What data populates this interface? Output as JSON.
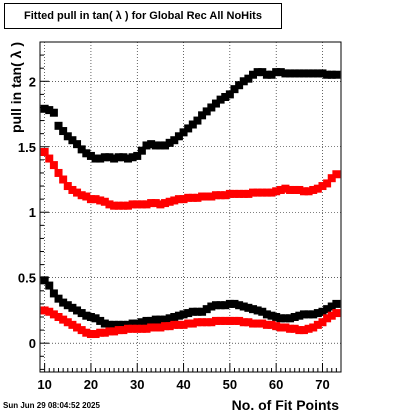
{
  "timestamp": "Sun Jun 29 08:04:52 2025",
  "chart_data": {
    "type": "scatter",
    "title": "Fitted pull in tan( λ ) for Global Rec All NoHits",
    "xlabel": "No. of Fit Points",
    "ylabel": "pull in tan( λ )",
    "xlim": [
      9,
      74
    ],
    "ylim": [
      -0.22,
      2.3
    ],
    "x_ticks": [
      10,
      20,
      30,
      40,
      50,
      60,
      70
    ],
    "y_ticks": [
      0,
      0.5,
      1,
      1.5,
      2
    ],
    "y_tick_labels": [
      "0",
      "0.5",
      "1",
      "1.5",
      "2"
    ],
    "grid": true,
    "marker": "square",
    "series": [
      {
        "color": "#000000",
        "x": [
          10,
          11,
          12,
          13,
          14,
          15,
          16,
          17,
          18,
          19,
          20,
          21,
          22,
          23,
          24,
          25,
          26,
          27,
          28,
          29,
          30,
          31,
          32,
          33,
          34,
          35,
          36,
          37,
          38,
          39,
          40,
          41,
          42,
          43,
          44,
          45,
          46,
          47,
          48,
          49,
          50,
          51,
          52,
          53,
          54,
          55,
          56,
          57,
          58,
          59,
          60,
          61,
          62,
          63,
          64,
          65,
          66,
          67,
          68,
          69,
          70,
          71,
          72,
          73
        ],
        "values": [
          1.79,
          1.78,
          1.76,
          1.66,
          1.62,
          1.58,
          1.55,
          1.52,
          1.48,
          1.45,
          1.43,
          1.41,
          1.41,
          1.42,
          1.42,
          1.41,
          1.42,
          1.42,
          1.41,
          1.42,
          1.43,
          1.47,
          1.51,
          1.52,
          1.51,
          1.51,
          1.51,
          1.53,
          1.55,
          1.58,
          1.61,
          1.64,
          1.67,
          1.7,
          1.74,
          1.77,
          1.8,
          1.83,
          1.86,
          1.88,
          1.9,
          1.94,
          1.97,
          2.0,
          2.02,
          2.05,
          2.07,
          2.07,
          2.05,
          2.05,
          2.07,
          2.07,
          2.06,
          2.06,
          2.06,
          2.06,
          2.06,
          2.06,
          2.06,
          2.06,
          2.06,
          2.05,
          2.05,
          2.05
        ]
      },
      {
        "color": "#ff0000",
        "x": [
          10,
          11,
          12,
          13,
          14,
          15,
          16,
          17,
          18,
          19,
          20,
          21,
          22,
          23,
          24,
          25,
          26,
          27,
          28,
          29,
          30,
          31,
          32,
          33,
          34,
          35,
          36,
          37,
          38,
          39,
          40,
          41,
          42,
          43,
          44,
          45,
          46,
          47,
          48,
          49,
          50,
          51,
          52,
          53,
          54,
          55,
          56,
          57,
          58,
          59,
          60,
          61,
          62,
          63,
          64,
          65,
          66,
          67,
          68,
          69,
          70,
          71,
          72,
          73
        ],
        "values": [
          1.46,
          1.41,
          1.36,
          1.3,
          1.25,
          1.2,
          1.17,
          1.15,
          1.13,
          1.12,
          1.1,
          1.1,
          1.09,
          1.08,
          1.06,
          1.05,
          1.05,
          1.05,
          1.05,
          1.06,
          1.06,
          1.06,
          1.06,
          1.07,
          1.07,
          1.06,
          1.07,
          1.08,
          1.09,
          1.1,
          1.1,
          1.11,
          1.11,
          1.11,
          1.12,
          1.12,
          1.12,
          1.13,
          1.13,
          1.13,
          1.14,
          1.14,
          1.14,
          1.14,
          1.14,
          1.15,
          1.15,
          1.15,
          1.15,
          1.15,
          1.16,
          1.17,
          1.18,
          1.17,
          1.17,
          1.17,
          1.16,
          1.16,
          1.17,
          1.18,
          1.2,
          1.22,
          1.26,
          1.29
        ]
      },
      {
        "color": "#000000",
        "x": [
          10,
          11,
          12,
          13,
          14,
          15,
          16,
          17,
          18,
          19,
          20,
          21,
          22,
          23,
          24,
          25,
          26,
          27,
          28,
          29,
          30,
          31,
          32,
          33,
          34,
          35,
          36,
          37,
          38,
          39,
          40,
          41,
          42,
          43,
          44,
          45,
          46,
          47,
          48,
          49,
          50,
          51,
          52,
          53,
          54,
          55,
          56,
          57,
          58,
          59,
          60,
          61,
          62,
          63,
          64,
          65,
          66,
          67,
          68,
          69,
          70,
          71,
          72,
          73
        ],
        "values": [
          0.48,
          0.44,
          0.38,
          0.34,
          0.31,
          0.29,
          0.27,
          0.25,
          0.23,
          0.21,
          0.2,
          0.19,
          0.17,
          0.15,
          0.14,
          0.14,
          0.14,
          0.14,
          0.14,
          0.15,
          0.15,
          0.16,
          0.17,
          0.17,
          0.18,
          0.18,
          0.18,
          0.19,
          0.2,
          0.21,
          0.22,
          0.23,
          0.24,
          0.24,
          0.24,
          0.26,
          0.28,
          0.29,
          0.29,
          0.29,
          0.3,
          0.3,
          0.29,
          0.28,
          0.27,
          0.26,
          0.25,
          0.24,
          0.22,
          0.21,
          0.2,
          0.19,
          0.19,
          0.19,
          0.2,
          0.21,
          0.22,
          0.22,
          0.22,
          0.23,
          0.24,
          0.26,
          0.28,
          0.3
        ]
      },
      {
        "color": "#ff0000",
        "x": [
          10,
          11,
          12,
          13,
          14,
          15,
          16,
          17,
          18,
          19,
          20,
          21,
          22,
          23,
          24,
          25,
          26,
          27,
          28,
          29,
          30,
          31,
          32,
          33,
          34,
          35,
          36,
          37,
          38,
          39,
          40,
          41,
          42,
          43,
          44,
          45,
          46,
          47,
          48,
          49,
          50,
          51,
          52,
          53,
          54,
          55,
          56,
          57,
          58,
          59,
          60,
          61,
          62,
          63,
          64,
          65,
          66,
          67,
          68,
          69,
          70,
          71,
          72,
          73
        ],
        "values": [
          0.25,
          0.24,
          0.22,
          0.2,
          0.18,
          0.16,
          0.14,
          0.12,
          0.1,
          0.08,
          0.07,
          0.07,
          0.08,
          0.08,
          0.09,
          0.09,
          0.1,
          0.1,
          0.11,
          0.11,
          0.11,
          0.11,
          0.11,
          0.12,
          0.12,
          0.12,
          0.13,
          0.13,
          0.14,
          0.14,
          0.14,
          0.15,
          0.15,
          0.16,
          0.16,
          0.16,
          0.16,
          0.17,
          0.17,
          0.17,
          0.17,
          0.17,
          0.17,
          0.16,
          0.16,
          0.15,
          0.15,
          0.15,
          0.14,
          0.14,
          0.13,
          0.12,
          0.12,
          0.11,
          0.11,
          0.1,
          0.1,
          0.11,
          0.12,
          0.14,
          0.16,
          0.19,
          0.21,
          0.23
        ]
      }
    ]
  }
}
